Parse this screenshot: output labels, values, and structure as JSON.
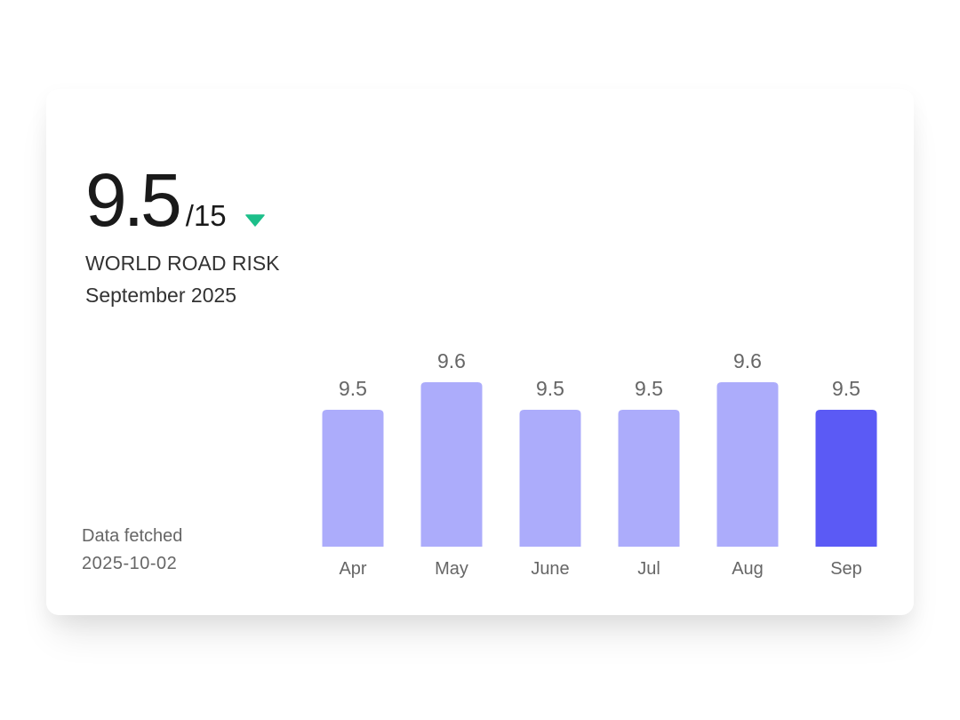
{
  "card": {
    "score": "9.5",
    "score_max": "/15",
    "trend_icon": "triangle-down-icon",
    "index_name": "WORLD ROAD RISK",
    "period": "September 2025",
    "fetched_label": "Data fetched",
    "fetched_date": "2025-10-02"
  },
  "colors": {
    "bar": "#acacfb",
    "bar_highlight": "#5b5af5",
    "trend": "#1dbf8a",
    "value_label": "#666666",
    "category_label": "#666666"
  },
  "chart_data": {
    "type": "bar",
    "categories": [
      "Apr",
      "May",
      "June",
      "Jul",
      "Aug",
      "Sep"
    ],
    "values": [
      9.5,
      9.6,
      9.5,
      9.5,
      9.6,
      9.5
    ],
    "value_labels": [
      "9.5",
      "9.6",
      "9.5",
      "9.5",
      "9.6",
      "9.5"
    ],
    "highlight_index": 5,
    "title": "",
    "xlabel": "",
    "ylabel": "",
    "grid": false,
    "legend": false
  }
}
